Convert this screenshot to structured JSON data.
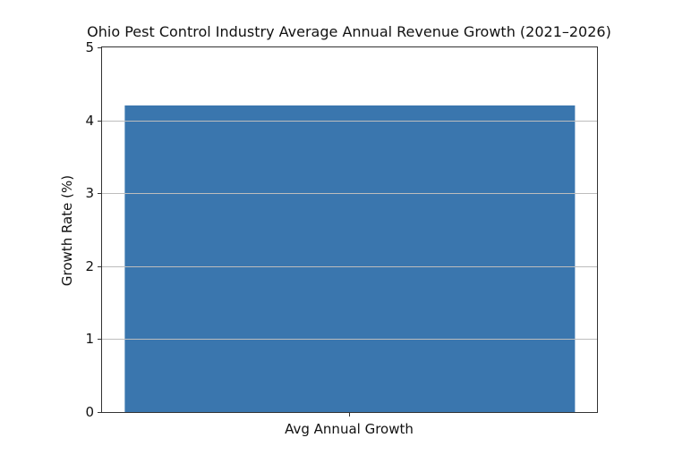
{
  "chart_data": {
    "type": "bar",
    "title": "Ohio Pest Control Industry Average Annual Revenue Growth (2021–2026)",
    "categories": [
      "Avg Annual Growth"
    ],
    "values": [
      4.2
    ],
    "xlabel": "",
    "ylabel": "Growth Rate (%)",
    "ylim": [
      0,
      5
    ],
    "yticks": [
      0,
      1,
      2,
      3,
      4,
      5
    ],
    "grid": true,
    "grid_over_bars": true,
    "bar_width_fraction": 0.91,
    "bar_color": "#3a76ae",
    "grid_color": "#bdbdbd",
    "spine_color": "#333333",
    "text_color": "#111111",
    "background": "#ffffff"
  }
}
